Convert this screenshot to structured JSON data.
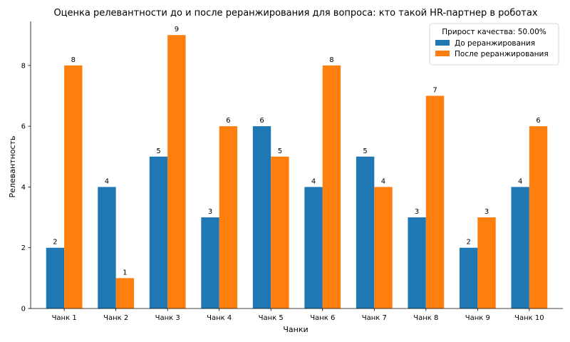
{
  "chart_data": {
    "type": "bar",
    "title": "Оценка релевантности до и после реранжирования для вопроса: кто такой HR-партнер в роботах",
    "xlabel": "Чанки",
    "ylabel": "Релевантность",
    "categories": [
      "Чанк 1",
      "Чанк 2",
      "Чанк 3",
      "Чанк 4",
      "Чанк 5",
      "Чанк 6",
      "Чанк 7",
      "Чанк 8",
      "Чанк 9",
      "Чанк 10"
    ],
    "series": [
      {
        "name": "До реранжирования",
        "color": "#1f77b4",
        "values": [
          2,
          4,
          5,
          3,
          6,
          4,
          5,
          3,
          2,
          4
        ]
      },
      {
        "name": "После реранжирования",
        "color": "#ff7f0e",
        "values": [
          8,
          1,
          9,
          6,
          5,
          8,
          4,
          7,
          3,
          6
        ]
      }
    ],
    "ylim": [
      0,
      9.45
    ],
    "yticks": [
      0,
      2,
      4,
      6,
      8
    ],
    "legend": {
      "title": "Прирост качества: 50.00%",
      "placement": "top-right"
    },
    "grid": false
  }
}
